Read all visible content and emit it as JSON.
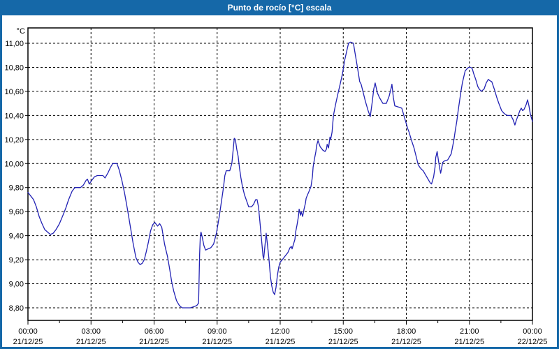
{
  "window": {
    "title": "Punto de rocío [°C] escala"
  },
  "colors": {
    "titlebar_bg": "#1568A8",
    "frame": "#1568A8",
    "plot_bg": "#FFFFFF",
    "plot_border": "#000000",
    "grid": "#000000",
    "series": "#2222B4",
    "label": "#000000"
  },
  "chart_data": {
    "type": "line",
    "title": "Punto de rocío [°C] escala",
    "y_unit": "°C",
    "ylim": [
      8.8,
      11.0
    ],
    "xlim_minutes": [
      0,
      1440
    ],
    "grid": "dashed",
    "legend_position": "none",
    "y_ticks": [
      {
        "v": 11.0,
        "label": "11,00"
      },
      {
        "v": 10.8,
        "label": "10,80"
      },
      {
        "v": 10.6,
        "label": "10,60"
      },
      {
        "v": 10.4,
        "label": "10,40"
      },
      {
        "v": 10.2,
        "label": "10,20"
      },
      {
        "v": 10.0,
        "label": "10,00"
      },
      {
        "v": 9.8,
        "label": "9,80"
      },
      {
        "v": 9.6,
        "label": "9,60"
      },
      {
        "v": 9.4,
        "label": "9,40"
      },
      {
        "v": 9.2,
        "label": "9,20"
      },
      {
        "v": 9.0,
        "label": "9,00"
      },
      {
        "v": 8.8,
        "label": "8,80"
      }
    ],
    "x_ticks": [
      {
        "t": 0,
        "time": "00:00",
        "date": "21/12/25"
      },
      {
        "t": 180,
        "time": "03:00",
        "date": "21/12/25"
      },
      {
        "t": 360,
        "time": "06:00",
        "date": "21/12/25"
      },
      {
        "t": 540,
        "time": "09:00",
        "date": "21/12/25"
      },
      {
        "t": 720,
        "time": "12:00",
        "date": "21/12/25"
      },
      {
        "t": 900,
        "time": "15:00",
        "date": "21/12/25"
      },
      {
        "t": 1080,
        "time": "18:00",
        "date": "21/12/25"
      },
      {
        "t": 1260,
        "time": "21:00",
        "date": "21/12/25"
      },
      {
        "t": 1440,
        "time": "00:00",
        "date": "22/12/25"
      }
    ],
    "minor_tick_step_minutes": 90,
    "series": [
      {
        "name": "Punto de rocío",
        "color": "#2222B4",
        "points": [
          [
            0,
            9.76
          ],
          [
            8,
            9.73
          ],
          [
            16,
            9.7
          ],
          [
            24,
            9.64
          ],
          [
            32,
            9.56
          ],
          [
            40,
            9.5
          ],
          [
            48,
            9.45
          ],
          [
            56,
            9.43
          ],
          [
            64,
            9.41
          ],
          [
            72,
            9.42
          ],
          [
            80,
            9.45
          ],
          [
            90,
            9.5
          ],
          [
            100,
            9.57
          ],
          [
            108,
            9.63
          ],
          [
            116,
            9.7
          ],
          [
            126,
            9.77
          ],
          [
            134,
            9.8
          ],
          [
            150,
            9.8
          ],
          [
            158,
            9.82
          ],
          [
            166,
            9.86
          ],
          [
            170,
            9.87
          ],
          [
            175,
            9.83
          ],
          [
            182,
            9.86
          ],
          [
            190,
            9.89
          ],
          [
            198,
            9.9
          ],
          [
            214,
            9.9
          ],
          [
            220,
            9.88
          ],
          [
            228,
            9.92
          ],
          [
            236,
            9.97
          ],
          [
            242,
            10.0
          ],
          [
            254,
            10.0
          ],
          [
            260,
            9.95
          ],
          [
            268,
            9.86
          ],
          [
            276,
            9.75
          ],
          [
            284,
            9.62
          ],
          [
            292,
            9.48
          ],
          [
            300,
            9.34
          ],
          [
            308,
            9.22
          ],
          [
            314,
            9.18
          ],
          [
            320,
            9.16
          ],
          [
            326,
            9.17
          ],
          [
            332,
            9.2
          ],
          [
            338,
            9.27
          ],
          [
            344,
            9.35
          ],
          [
            350,
            9.44
          ],
          [
            356,
            9.49
          ],
          [
            362,
            9.51
          ],
          [
            370,
            9.48
          ],
          [
            376,
            9.5
          ],
          [
            382,
            9.47
          ],
          [
            386,
            9.4
          ],
          [
            390,
            9.33
          ],
          [
            394,
            9.28
          ],
          [
            398,
            9.23
          ],
          [
            404,
            9.13
          ],
          [
            410,
            9.02
          ],
          [
            416,
            8.94
          ],
          [
            424,
            8.86
          ],
          [
            432,
            8.82
          ],
          [
            440,
            8.8
          ],
          [
            452,
            8.8
          ],
          [
            464,
            8.8
          ],
          [
            474,
            8.81
          ],
          [
            482,
            8.82
          ],
          [
            487,
            8.84
          ],
          [
            490,
            9.25
          ],
          [
            492,
            9.4
          ],
          [
            494,
            9.43
          ],
          [
            498,
            9.38
          ],
          [
            502,
            9.32
          ],
          [
            507,
            9.28
          ],
          [
            514,
            9.29
          ],
          [
            522,
            9.3
          ],
          [
            530,
            9.33
          ],
          [
            538,
            9.42
          ],
          [
            546,
            9.56
          ],
          [
            552,
            9.68
          ],
          [
            558,
            9.8
          ],
          [
            562,
            9.9
          ],
          [
            566,
            9.94
          ],
          [
            576,
            9.94
          ],
          [
            582,
            10.0
          ],
          [
            586,
            10.12
          ],
          [
            589,
            10.21
          ],
          [
            592,
            10.2
          ],
          [
            596,
            10.12
          ],
          [
            600,
            10.06
          ],
          [
            604,
            9.96
          ],
          [
            608,
            9.88
          ],
          [
            612,
            9.81
          ],
          [
            618,
            9.74
          ],
          [
            624,
            9.69
          ],
          [
            630,
            9.64
          ],
          [
            638,
            9.64
          ],
          [
            644,
            9.66
          ],
          [
            650,
            9.7
          ],
          [
            654,
            9.7
          ],
          [
            658,
            9.64
          ],
          [
            662,
            9.52
          ],
          [
            667,
            9.36
          ],
          [
            671,
            9.23
          ],
          [
            673,
            9.21
          ],
          [
            677,
            9.33
          ],
          [
            680,
            9.42
          ],
          [
            684,
            9.32
          ],
          [
            688,
            9.2
          ],
          [
            692,
            9.06
          ],
          [
            696,
            8.98
          ],
          [
            700,
            8.93
          ],
          [
            704,
            8.91
          ],
          [
            708,
            8.97
          ],
          [
            712,
            9.07
          ],
          [
            716,
            9.14
          ],
          [
            720,
            9.18
          ],
          [
            726,
            9.2
          ],
          [
            734,
            9.23
          ],
          [
            742,
            9.26
          ],
          [
            748,
            9.3
          ],
          [
            752,
            9.31
          ],
          [
            754,
            9.29
          ],
          [
            762,
            9.37
          ],
          [
            764,
            9.43
          ],
          [
            768,
            9.49
          ],
          [
            772,
            9.56
          ],
          [
            774,
            9.62
          ],
          [
            778,
            9.57
          ],
          [
            780,
            9.6
          ],
          [
            784,
            9.56
          ],
          [
            788,
            9.62
          ],
          [
            792,
            9.67
          ],
          [
            794,
            9.71
          ],
          [
            798,
            9.74
          ],
          [
            804,
            9.78
          ],
          [
            808,
            9.81
          ],
          [
            812,
            9.89
          ],
          [
            814,
            9.97
          ],
          [
            818,
            10.04
          ],
          [
            822,
            10.1
          ],
          [
            824,
            10.15
          ],
          [
            828,
            10.19
          ],
          [
            834,
            10.14
          ],
          [
            842,
            10.11
          ],
          [
            848,
            10.1
          ],
          [
            852,
            10.12
          ],
          [
            854,
            10.16
          ],
          [
            858,
            10.13
          ],
          [
            862,
            10.22
          ],
          [
            864,
            10.2
          ],
          [
            868,
            10.26
          ],
          [
            870,
            10.33
          ],
          [
            872,
            10.4
          ],
          [
            878,
            10.49
          ],
          [
            884,
            10.57
          ],
          [
            892,
            10.67
          ],
          [
            898,
            10.75
          ],
          [
            904,
            10.86
          ],
          [
            911,
            10.95
          ],
          [
            915,
            11.0
          ],
          [
            921,
            11.01
          ],
          [
            929,
            11.0
          ],
          [
            933,
            10.93
          ],
          [
            941,
            10.79
          ],
          [
            947,
            10.68
          ],
          [
            951,
            10.66
          ],
          [
            957,
            10.59
          ],
          [
            963,
            10.52
          ],
          [
            971,
            10.44
          ],
          [
            977,
            10.39
          ],
          [
            983,
            10.52
          ],
          [
            987,
            10.62
          ],
          [
            991,
            10.67
          ],
          [
            997,
            10.59
          ],
          [
            1003,
            10.55
          ],
          [
            1007,
            10.53
          ],
          [
            1013,
            10.5
          ],
          [
            1023,
            10.5
          ],
          [
            1031,
            10.56
          ],
          [
            1037,
            10.63
          ],
          [
            1039,
            10.66
          ],
          [
            1043,
            10.55
          ],
          [
            1047,
            10.48
          ],
          [
            1057,
            10.47
          ],
          [
            1067,
            10.46
          ],
          [
            1072,
            10.41
          ],
          [
            1078,
            10.35
          ],
          [
            1084,
            10.29
          ],
          [
            1088,
            10.26
          ],
          [
            1094,
            10.2
          ],
          [
            1102,
            10.13
          ],
          [
            1108,
            10.06
          ],
          [
            1114,
            9.99
          ],
          [
            1118,
            9.97
          ],
          [
            1124,
            9.95
          ],
          [
            1128,
            9.94
          ],
          [
            1134,
            9.91
          ],
          [
            1138,
            9.89
          ],
          [
            1144,
            9.86
          ],
          [
            1148,
            9.84
          ],
          [
            1152,
            9.83
          ],
          [
            1158,
            9.89
          ],
          [
            1162,
            9.97
          ],
          [
            1164,
            10.05
          ],
          [
            1168,
            10.1
          ],
          [
            1172,
            10.02
          ],
          [
            1176,
            9.95
          ],
          [
            1178,
            9.92
          ],
          [
            1182,
            9.98
          ],
          [
            1184,
            10.01
          ],
          [
            1188,
            10.02
          ],
          [
            1198,
            10.03
          ],
          [
            1204,
            10.06
          ],
          [
            1208,
            10.08
          ],
          [
            1212,
            10.14
          ],
          [
            1216,
            10.2
          ],
          [
            1220,
            10.28
          ],
          [
            1224,
            10.35
          ],
          [
            1228,
            10.44
          ],
          [
            1232,
            10.52
          ],
          [
            1236,
            10.6
          ],
          [
            1240,
            10.67
          ],
          [
            1244,
            10.72
          ],
          [
            1248,
            10.77
          ],
          [
            1254,
            10.79
          ],
          [
            1258,
            10.8
          ],
          [
            1264,
            10.8
          ],
          [
            1268,
            10.79
          ],
          [
            1272,
            10.75
          ],
          [
            1278,
            10.7
          ],
          [
            1284,
            10.64
          ],
          [
            1288,
            10.62
          ],
          [
            1294,
            10.6
          ],
          [
            1302,
            10.62
          ],
          [
            1308,
            10.67
          ],
          [
            1314,
            10.7
          ],
          [
            1318,
            10.69
          ],
          [
            1324,
            10.68
          ],
          [
            1332,
            10.61
          ],
          [
            1338,
            10.55
          ],
          [
            1344,
            10.5
          ],
          [
            1348,
            10.47
          ],
          [
            1352,
            10.44
          ],
          [
            1358,
            10.42
          ],
          [
            1362,
            10.41
          ],
          [
            1368,
            10.4
          ],
          [
            1378,
            10.4
          ],
          [
            1384,
            10.37
          ],
          [
            1390,
            10.32
          ],
          [
            1394,
            10.36
          ],
          [
            1398,
            10.39
          ],
          [
            1404,
            10.44
          ],
          [
            1408,
            10.46
          ],
          [
            1412,
            10.44
          ],
          [
            1416,
            10.45
          ],
          [
            1422,
            10.49
          ],
          [
            1426,
            10.53
          ],
          [
            1430,
            10.48
          ],
          [
            1434,
            10.41
          ],
          [
            1438,
            10.37
          ],
          [
            1440,
            10.35
          ]
        ]
      }
    ]
  }
}
